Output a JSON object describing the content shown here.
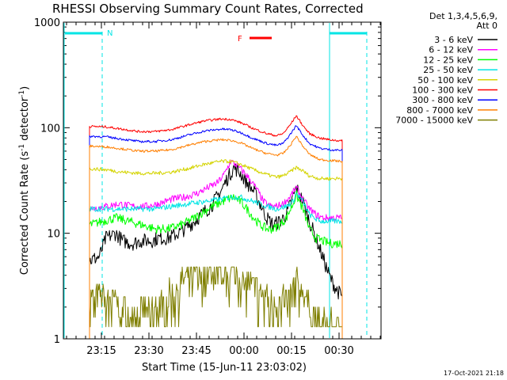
{
  "chart_data": {
    "type": "line",
    "title": "RHESSI Observing Summary Count Rates, Corrected",
    "ylabel_main": "Corrected Count Rate (s",
    "ylabel_sup1": "-1",
    "ylabel_mid": " detector",
    "ylabel_sup2": "-1",
    "ylabel_end": ")",
    "xlabel": "Start Time (15-Jun-11 23:03:02)",
    "x_ticks": [
      "23:15",
      "23:30",
      "23:45",
      "00:00",
      "00:15",
      "00:30"
    ],
    "y_ticks": [
      "1",
      "10",
      "100",
      "1000"
    ],
    "y_scale": "log",
    "ylim": [
      1,
      1000
    ],
    "legend_header": [
      "Det 1,3,4,5,6,9,",
      "Att 0"
    ],
    "legend_position": "top-right",
    "footer": "17-Oct-2021 21:18",
    "flags": [
      {
        "label": "N",
        "color": "#00e5e5"
      },
      {
        "label": "F",
        "color": "#ff0000"
      }
    ],
    "series": [
      {
        "name": "3 - 6 keV",
        "color": "#000000",
        "points": [
          [
            0,
            5.5
          ],
          [
            3,
            6
          ],
          [
            5,
            9
          ],
          [
            8,
            10
          ],
          [
            10,
            8.5
          ],
          [
            13,
            8
          ],
          [
            16,
            8.5
          ],
          [
            19,
            8.5
          ],
          [
            21,
            9
          ],
          [
            24,
            9
          ],
          [
            27,
            10
          ],
          [
            29,
            11
          ],
          [
            32,
            13
          ],
          [
            35,
            16
          ],
          [
            37,
            18
          ],
          [
            40,
            25
          ],
          [
            42,
            33
          ],
          [
            44,
            42
          ],
          [
            46,
            37
          ],
          [
            48,
            30
          ],
          [
            50,
            25
          ],
          [
            52,
            19
          ],
          [
            54,
            14
          ],
          [
            56,
            12
          ],
          [
            58,
            13
          ],
          [
            60,
            15
          ],
          [
            62,
            22
          ],
          [
            63,
            27
          ],
          [
            65,
            20
          ],
          [
            67,
            13
          ],
          [
            69,
            9
          ],
          [
            71,
            6
          ],
          [
            73,
            4
          ],
          [
            75,
            3
          ],
          [
            77,
            2.5
          ]
        ]
      },
      {
        "name": "6 - 12 keV",
        "color": "#ff00ff",
        "points": [
          [
            0,
            17
          ],
          [
            5,
            18
          ],
          [
            9,
            19
          ],
          [
            13,
            18
          ],
          [
            17,
            18
          ],
          [
            21,
            19
          ],
          [
            25,
            21
          ],
          [
            29,
            22
          ],
          [
            33,
            24
          ],
          [
            36,
            27
          ],
          [
            39,
            30
          ],
          [
            41,
            36
          ],
          [
            43,
            48
          ],
          [
            45,
            44
          ],
          [
            47,
            38
          ],
          [
            49,
            32
          ],
          [
            51,
            26
          ],
          [
            53,
            20
          ],
          [
            55,
            18
          ],
          [
            57,
            18
          ],
          [
            59,
            19
          ],
          [
            61,
            22
          ],
          [
            63,
            27
          ],
          [
            65,
            21
          ],
          [
            67,
            17
          ],
          [
            69,
            15
          ],
          [
            71,
            14
          ],
          [
            73,
            14
          ],
          [
            75,
            14
          ],
          [
            77,
            14
          ]
        ]
      },
      {
        "name": "12 - 25 keV",
        "color": "#00ff00",
        "points": [
          [
            0,
            12
          ],
          [
            4,
            13
          ],
          [
            8,
            14
          ],
          [
            12,
            13
          ],
          [
            16,
            12
          ],
          [
            20,
            11
          ],
          [
            24,
            11
          ],
          [
            28,
            12
          ],
          [
            32,
            14
          ],
          [
            36,
            17
          ],
          [
            39,
            19
          ],
          [
            42,
            21
          ],
          [
            44,
            22
          ],
          [
            46,
            20
          ],
          [
            48,
            17
          ],
          [
            50,
            14
          ],
          [
            52,
            12
          ],
          [
            54,
            11
          ],
          [
            56,
            11
          ],
          [
            58,
            12
          ],
          [
            60,
            14
          ],
          [
            62,
            19
          ],
          [
            63,
            23
          ],
          [
            65,
            17
          ],
          [
            67,
            11
          ],
          [
            69,
            9
          ],
          [
            71,
            8.5
          ],
          [
            73,
            8
          ],
          [
            75,
            8
          ],
          [
            77,
            8
          ]
        ]
      },
      {
        "name": "25 - 50 keV",
        "color": "#00e5e5",
        "points": [
          [
            0,
            17
          ],
          [
            5,
            17
          ],
          [
            10,
            17
          ],
          [
            15,
            17
          ],
          [
            20,
            17
          ],
          [
            25,
            18
          ],
          [
            30,
            19
          ],
          [
            35,
            20
          ],
          [
            40,
            21
          ],
          [
            43,
            22
          ],
          [
            46,
            22
          ],
          [
            50,
            20
          ],
          [
            54,
            18
          ],
          [
            57,
            17
          ],
          [
            60,
            18
          ],
          [
            62,
            20
          ],
          [
            63,
            24
          ],
          [
            65,
            20
          ],
          [
            67,
            15
          ],
          [
            70,
            13
          ],
          [
            73,
            13
          ],
          [
            77,
            13
          ]
        ]
      },
      {
        "name": "50 - 100 keV",
        "color": "#d4d400",
        "points": [
          [
            0,
            41
          ],
          [
            5,
            40
          ],
          [
            10,
            38
          ],
          [
            15,
            37
          ],
          [
            20,
            37
          ],
          [
            25,
            38
          ],
          [
            30,
            41
          ],
          [
            35,
            45
          ],
          [
            40,
            48
          ],
          [
            43,
            48
          ],
          [
            46,
            45
          ],
          [
            50,
            40
          ],
          [
            54,
            36
          ],
          [
            57,
            34
          ],
          [
            59,
            35
          ],
          [
            61,
            38
          ],
          [
            63,
            42
          ],
          [
            65,
            39
          ],
          [
            67,
            35
          ],
          [
            70,
            33
          ],
          [
            73,
            33
          ],
          [
            77,
            33
          ]
        ]
      },
      {
        "name": "100 - 300 keV",
        "color": "#ff0000",
        "points": [
          [
            0,
            103
          ],
          [
            5,
            102
          ],
          [
            10,
            97
          ],
          [
            15,
            92
          ],
          [
            20,
            92
          ],
          [
            25,
            96
          ],
          [
            30,
            106
          ],
          [
            35,
            116
          ],
          [
            40,
            121
          ],
          [
            43,
            120
          ],
          [
            46,
            112
          ],
          [
            50,
            98
          ],
          [
            54,
            88
          ],
          [
            57,
            84
          ],
          [
            59,
            88
          ],
          [
            61,
            105
          ],
          [
            63,
            130
          ],
          [
            65,
            105
          ],
          [
            67,
            88
          ],
          [
            70,
            80
          ],
          [
            73,
            77
          ],
          [
            77,
            75
          ]
        ]
      },
      {
        "name": "300 - 800 keV",
        "color": "#0000ff",
        "points": [
          [
            0,
            83
          ],
          [
            5,
            82
          ],
          [
            10,
            78
          ],
          [
            15,
            74
          ],
          [
            20,
            74
          ],
          [
            25,
            77
          ],
          [
            30,
            85
          ],
          [
            35,
            93
          ],
          [
            40,
            97
          ],
          [
            43,
            96
          ],
          [
            46,
            90
          ],
          [
            50,
            79
          ],
          [
            54,
            71
          ],
          [
            57,
            68
          ],
          [
            59,
            71
          ],
          [
            61,
            85
          ],
          [
            63,
            105
          ],
          [
            65,
            85
          ],
          [
            67,
            71
          ],
          [
            70,
            64
          ],
          [
            73,
            62
          ],
          [
            77,
            61
          ]
        ]
      },
      {
        "name": "800 - 7000 keV",
        "color": "#ff7f00",
        "points": [
          [
            0,
            67
          ],
          [
            5,
            66
          ],
          [
            10,
            63
          ],
          [
            15,
            60
          ],
          [
            20,
            60
          ],
          [
            25,
            62
          ],
          [
            30,
            68
          ],
          [
            35,
            74
          ],
          [
            40,
            77
          ],
          [
            43,
            76
          ],
          [
            46,
            72
          ],
          [
            50,
            63
          ],
          [
            54,
            57
          ],
          [
            57,
            55
          ],
          [
            59,
            57
          ],
          [
            61,
            67
          ],
          [
            63,
            83
          ],
          [
            65,
            67
          ],
          [
            67,
            56
          ],
          [
            70,
            50
          ],
          [
            73,
            49
          ],
          [
            77,
            48
          ]
        ]
      },
      {
        "name": "7000 - 15000 keV",
        "color": "#7f7f00",
        "points": [
          [
            0,
            2.5
          ],
          [
            6,
            2.5
          ],
          [
            10,
            2
          ],
          [
            14,
            1.8
          ],
          [
            18,
            1.8
          ],
          [
            22,
            2.2
          ],
          [
            25,
            2.8
          ],
          [
            28,
            3.5
          ],
          [
            31,
            4.2
          ],
          [
            34,
            4.6
          ],
          [
            37,
            4.8
          ],
          [
            40,
            4.8
          ],
          [
            43,
            4.5
          ],
          [
            46,
            4
          ],
          [
            49,
            3.4
          ],
          [
            52,
            2.8
          ],
          [
            55,
            2.4
          ],
          [
            58,
            2.2
          ],
          [
            61,
            2.6
          ],
          [
            63,
            3.6
          ],
          [
            65,
            2.8
          ],
          [
            67,
            2
          ],
          [
            69,
            1.6
          ],
          [
            71,
            1.5
          ],
          [
            73,
            1.4
          ],
          [
            75,
            1.3
          ],
          [
            77,
            1.3
          ]
        ]
      }
    ]
  }
}
